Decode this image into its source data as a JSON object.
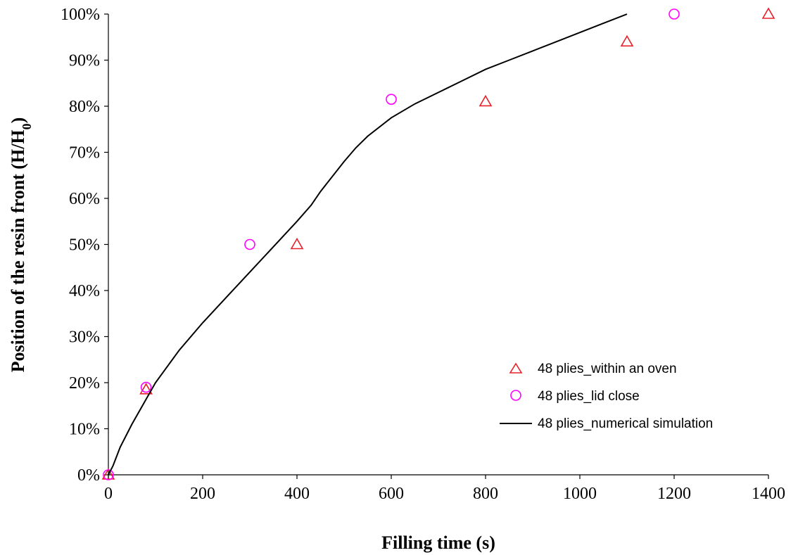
{
  "chart_data": {
    "type": "scatter",
    "xlabel": "Filling time (s)",
    "ylabel_main": "Position of the resin front (H/H",
    "ylabel_sub": "0",
    "ylabel_close": ")",
    "xlim": [
      0,
      1400
    ],
    "ylim": [
      0,
      100
    ],
    "x_ticks": [
      0,
      200,
      400,
      600,
      800,
      1000,
      1200,
      1400
    ],
    "x_tick_labels": [
      "0",
      "200",
      "400",
      "600",
      "800",
      "1000",
      "1200",
      "1400"
    ],
    "y_ticks": [
      0,
      10,
      20,
      30,
      40,
      50,
      60,
      70,
      80,
      90,
      100
    ],
    "y_tick_labels": [
      "0%",
      "10%",
      "20%",
      "30%",
      "40%",
      "50%",
      "60%",
      "70%",
      "80%",
      "90%",
      "100%"
    ],
    "grid": false,
    "legend_position": "lower-right",
    "series": [
      {
        "name": "48 plies_within an oven",
        "marker": "triangle",
        "color": "#e8202a",
        "x": [
          0,
          80,
          400,
          800,
          1100,
          1400
        ],
        "y": [
          0,
          18.5,
          50,
          81,
          94,
          100
        ]
      },
      {
        "name": "48 plies_lid close",
        "marker": "circle",
        "color": "#ff00ff",
        "x": [
          0,
          80,
          300,
          600,
          1200
        ],
        "y": [
          0,
          19,
          50,
          81.5,
          100
        ]
      },
      {
        "name": "48 plies_numerical simulation",
        "marker": "line",
        "color": "#000000",
        "x": [
          0,
          10,
          25,
          50,
          100,
          150,
          200,
          250,
          300,
          350,
          400,
          430,
          450,
          500,
          525,
          550,
          600,
          650,
          700,
          750,
          800,
          850,
          900,
          950,
          1000,
          1050,
          1100
        ],
        "y": [
          0,
          2,
          6,
          11,
          20,
          27,
          33,
          38.5,
          44,
          49.5,
          55,
          58.5,
          61.5,
          68,
          71,
          73.5,
          77.5,
          80.5,
          83,
          85.5,
          88,
          90,
          92,
          94,
          96,
          98,
          100
        ]
      }
    ]
  }
}
